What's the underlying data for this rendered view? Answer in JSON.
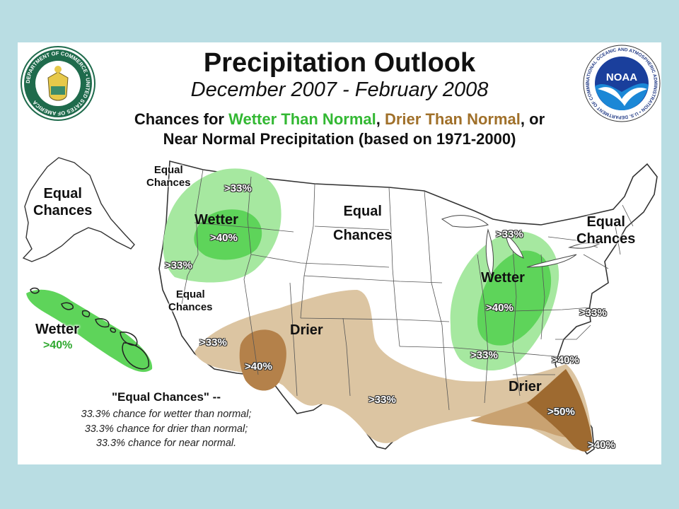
{
  "title": "Precipitation Outlook",
  "subtitle": "December 2007 - February 2008",
  "description": {
    "prefix": "Chances for ",
    "wetter": "Wetter Than Normal",
    "sep": ", ",
    "drier": "Drier Than Normal",
    "suffix": ", or",
    "line2": "Near Normal Precipitation (based on 1971-2000)"
  },
  "colors": {
    "wetter_label": "#33b833",
    "drier_label": "#a0702a",
    "wet_light": "#a6e8a0",
    "wet_dark": "#5ed45a",
    "dry_light": "#dcc5a2",
    "dry_dark": "#b4814a",
    "background": "#b9dde3"
  },
  "labels": {
    "alaska_ec": [
      "Equal",
      "Chances"
    ],
    "nw_ec": [
      "Equal",
      "Chances"
    ],
    "nw_wetter": "Wetter",
    "nw_33": ">33%",
    "nw_40": ">40%",
    "nw_33_lower": ">33%",
    "west_ec": [
      "Equal",
      "Chances"
    ],
    "central_ec": [
      "Equal",
      "Chances"
    ],
    "ohio_wetter": "Wetter",
    "ohio_33_top": ">33%",
    "ohio_40": ">40%",
    "ohio_33_bottom": ">33%",
    "ne_ec": [
      "Equal",
      "Chances"
    ],
    "sw_drier": "Drier",
    "sw_33": ">33%",
    "sw_40": ">40%",
    "texas_33": ">33%",
    "se_drier": "Drier",
    "se_33": ">33%",
    "se_40": ">40%",
    "se_50": ">50%",
    "fl_40": ">40%",
    "hawaii_wetter": "Wetter",
    "hawaii_40": ">40%"
  },
  "legend": {
    "title": "\"Equal Chances\" --",
    "lines": [
      "33.3% chance for wetter than normal;",
      "33.3% chance for drier than normal;",
      "33.3% chance for near normal."
    ]
  },
  "logos": {
    "commerce_text": "DEPARTMENT OF COMMERCE • UNITED STATES OF AMERICA",
    "noaa_text": "NOAA",
    "noaa_ring_text": "NATIONAL OCEANIC AND ATMOSPHERIC ADMINISTRATION • U.S. DEPARTMENT OF COMMERCE"
  }
}
